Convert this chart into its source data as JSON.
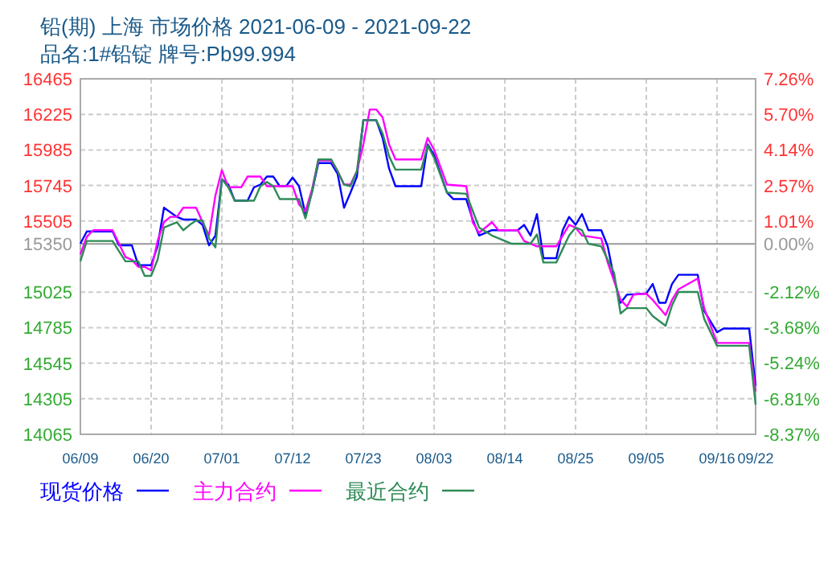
{
  "chart_data": {
    "type": "line",
    "title": "铅(期) 上海 市场价格 2021-06-09 - 2021-09-22",
    "subtitle": "品名:1#铅锭 牌号:Pb99.994",
    "xlim": [
      "2021-06-09",
      "2021-09-22"
    ],
    "xticks": [
      {
        "value": "2021-06-09",
        "label": "06/09"
      },
      {
        "value": "2021-06-20",
        "label": "06/20"
      },
      {
        "value": "2021-07-01",
        "label": "07/01"
      },
      {
        "value": "2021-07-12",
        "label": "07/12"
      },
      {
        "value": "2021-07-23",
        "label": "07/23"
      },
      {
        "value": "2021-08-03",
        "label": "08/03"
      },
      {
        "value": "2021-08-14",
        "label": "08/14"
      },
      {
        "value": "2021-08-25",
        "label": "08/25"
      },
      {
        "value": "2021-09-05",
        "label": "09/05"
      },
      {
        "value": "2021-09-16",
        "label": "09/16"
      },
      {
        "value": "2021-09-22",
        "label": "09/22"
      }
    ],
    "ylim": [
      14065,
      16465
    ],
    "yticks": [
      14065,
      14305,
      14545,
      14785,
      15025,
      15350,
      15505,
      15745,
      15985,
      16225,
      16465
    ],
    "y2lim": [
      -8.37,
      7.26
    ],
    "y2ticks": [
      {
        "value": -8.37,
        "label": "-8.37%"
      },
      {
        "value": -6.81,
        "label": "-6.81%"
      },
      {
        "value": -5.24,
        "label": "-5.24%"
      },
      {
        "value": -3.68,
        "label": "-3.68%"
      },
      {
        "value": -2.12,
        "label": "-2.12%"
      },
      {
        "value": 0,
        "label": "0.00%"
      },
      {
        "value": 1.01,
        "label": "1.01%"
      },
      {
        "value": 2.57,
        "label": "2.57%"
      },
      {
        "value": 4.14,
        "label": "4.14%"
      },
      {
        "value": 5.7,
        "label": "5.70%"
      },
      {
        "value": 7.26,
        "label": "7.26%"
      }
    ],
    "ref_lines": [
      {
        "axis": "y",
        "value": 15350,
        "color": "#999999"
      }
    ],
    "grid": true,
    "legend": "bottom left",
    "line_style": "solid",
    "series": [
      {
        "name": "现货价格",
        "color": "#0000ff",
        "x": [
          "2021-06-09",
          "2021-06-10",
          "2021-06-14",
          "2021-06-15",
          "2021-06-17",
          "2021-06-18",
          "2021-06-20",
          "2021-06-21",
          "2021-06-22",
          "2021-06-24",
          "2021-06-25",
          "2021-06-27",
          "2021-06-28",
          "2021-06-29",
          "2021-06-30",
          "2021-07-01",
          "2021-07-02",
          "2021-07-03",
          "2021-07-05",
          "2021-07-06",
          "2021-07-07",
          "2021-07-08",
          "2021-07-09",
          "2021-07-10",
          "2021-07-11",
          "2021-07-12",
          "2021-07-13",
          "2021-07-14",
          "2021-07-15",
          "2021-07-16",
          "2021-07-18",
          "2021-07-19",
          "2021-07-20",
          "2021-07-21",
          "2021-07-22",
          "2021-07-23",
          "2021-07-25",
          "2021-07-26",
          "2021-07-27",
          "2021-07-28",
          "2021-08-01",
          "2021-08-02",
          "2021-08-03",
          "2021-08-05",
          "2021-08-06",
          "2021-08-08",
          "2021-08-09",
          "2021-08-10",
          "2021-08-12",
          "2021-08-16",
          "2021-08-17",
          "2021-08-18",
          "2021-08-19",
          "2021-08-20",
          "2021-08-22",
          "2021-08-23",
          "2021-08-24",
          "2021-08-25",
          "2021-08-26",
          "2021-08-27",
          "2021-08-29",
          "2021-08-30",
          "2021-08-31",
          "2021-09-01",
          "2021-09-02",
          "2021-09-05",
          "2021-09-06",
          "2021-09-07",
          "2021-09-08",
          "2021-09-09",
          "2021-09-10",
          "2021-09-13",
          "2021-09-14",
          "2021-09-16",
          "2021-09-17",
          "2021-09-21",
          "2021-09-22"
        ],
        "values": [
          15352,
          15435,
          15435,
          15341,
          15341,
          15207,
          15207,
          15334,
          15595,
          15533,
          15515,
          15515,
          15479,
          15341,
          15407,
          15787,
          15751,
          15642,
          15642,
          15733,
          15751,
          15805,
          15805,
          15740,
          15740,
          15798,
          15740,
          15552,
          15697,
          15896,
          15896,
          15823,
          15595,
          15697,
          15805,
          16186,
          16186,
          16066,
          15860,
          15740,
          15740,
          16023,
          15950,
          15697,
          15653,
          15653,
          15515,
          15407,
          15443,
          15443,
          15479,
          15407,
          15552,
          15254,
          15254,
          15443,
          15533,
          15479,
          15552,
          15443,
          15443,
          15334,
          15117,
          14953,
          15008,
          15015,
          15080,
          14953,
          14953,
          15080,
          15142,
          15142,
          14899,
          14754,
          14779,
          14779,
          14391
        ]
      },
      {
        "name": "主力合约",
        "color": "#ff00ff",
        "x": [
          "2021-06-09",
          "2021-06-10",
          "2021-06-11",
          "2021-06-14",
          "2021-06-16",
          "2021-06-17",
          "2021-06-18",
          "2021-06-19",
          "2021-06-20",
          "2021-06-21",
          "2021-06-22",
          "2021-06-23",
          "2021-06-24",
          "2021-06-25",
          "2021-06-27",
          "2021-06-28",
          "2021-06-29",
          "2021-06-30",
          "2021-07-01",
          "2021-07-02",
          "2021-07-04",
          "2021-07-05",
          "2021-07-07",
          "2021-07-08",
          "2021-07-12",
          "2021-07-13",
          "2021-07-14",
          "2021-07-15",
          "2021-07-16",
          "2021-07-18",
          "2021-07-19",
          "2021-07-20",
          "2021-07-21",
          "2021-07-22",
          "2021-07-23",
          "2021-07-24",
          "2021-07-25",
          "2021-07-26",
          "2021-07-27",
          "2021-07-28",
          "2021-08-01",
          "2021-08-02",
          "2021-08-03",
          "2021-08-05",
          "2021-08-08",
          "2021-08-09",
          "2021-08-10",
          "2021-08-12",
          "2021-08-13",
          "2021-08-16",
          "2021-08-17",
          "2021-08-19",
          "2021-08-22",
          "2021-08-24",
          "2021-08-25",
          "2021-08-26",
          "2021-08-29",
          "2021-08-30",
          "2021-09-01",
          "2021-09-02",
          "2021-09-03",
          "2021-09-05",
          "2021-09-06",
          "2021-09-08",
          "2021-09-09",
          "2021-09-10",
          "2021-09-13",
          "2021-09-14",
          "2021-09-16",
          "2021-09-21",
          "2021-09-22"
        ],
        "values": [
          15280,
          15399,
          15443,
          15443,
          15262,
          15244,
          15196,
          15196,
          15171,
          15370,
          15497,
          15533,
          15533,
          15595,
          15595,
          15497,
          15407,
          15678,
          15849,
          15733,
          15733,
          15805,
          15805,
          15740,
          15740,
          15617,
          15570,
          15715,
          15914,
          15914,
          15842,
          15751,
          15751,
          15842,
          16023,
          16258,
          16258,
          16204,
          16023,
          15921,
          15921,
          16066,
          15986,
          15751,
          15740,
          15497,
          15425,
          15497,
          15443,
          15443,
          15370,
          15334,
          15334,
          15479,
          15461,
          15407,
          15388,
          15225,
          14972,
          14928,
          15008,
          15015,
          14972,
          14870,
          14972,
          15044,
          15117,
          14917,
          14682,
          14682,
          14355
        ]
      },
      {
        "name": "最近合约",
        "color": "#2e8b57",
        "x": [
          "2021-06-09",
          "2021-06-10",
          "2021-06-14",
          "2021-06-16",
          "2021-06-18",
          "2021-06-19",
          "2021-06-20",
          "2021-06-21",
          "2021-06-22",
          "2021-06-24",
          "2021-06-25",
          "2021-06-26",
          "2021-06-27",
          "2021-06-28",
          "2021-06-29",
          "2021-06-30",
          "2021-07-01",
          "2021-07-02",
          "2021-07-03",
          "2021-07-06",
          "2021-07-07",
          "2021-07-08",
          "2021-07-09",
          "2021-07-10",
          "2021-07-13",
          "2021-07-14",
          "2021-07-15",
          "2021-07-16",
          "2021-07-18",
          "2021-07-19",
          "2021-07-20",
          "2021-07-21",
          "2021-07-22",
          "2021-07-23",
          "2021-07-25",
          "2021-07-26",
          "2021-07-27",
          "2021-07-28",
          "2021-08-01",
          "2021-08-02",
          "2021-08-03",
          "2021-08-05",
          "2021-08-08",
          "2021-08-10",
          "2021-08-12",
          "2021-08-15",
          "2021-08-18",
          "2021-08-19",
          "2021-08-20",
          "2021-08-22",
          "2021-08-24",
          "2021-08-25",
          "2021-08-26",
          "2021-08-27",
          "2021-08-29",
          "2021-08-31",
          "2021-09-01",
          "2021-09-02",
          "2021-09-05",
          "2021-09-06",
          "2021-09-08",
          "2021-09-09",
          "2021-09-10",
          "2021-09-13",
          "2021-09-14",
          "2021-09-16",
          "2021-09-21",
          "2021-09-22"
        ],
        "values": [
          15233,
          15370,
          15370,
          15233,
          15233,
          15135,
          15135,
          15243,
          15461,
          15497,
          15443,
          15479,
          15508,
          15508,
          15388,
          15327,
          15787,
          15733,
          15642,
          15642,
          15740,
          15769,
          15740,
          15653,
          15653,
          15523,
          15697,
          15921,
          15921,
          15842,
          15751,
          15740,
          15842,
          16186,
          16186,
          16095,
          15943,
          15852,
          15852,
          16016,
          15932,
          15697,
          15689,
          15461,
          15407,
          15352,
          15352,
          15414,
          15225,
          15225,
          15407,
          15461,
          15443,
          15352,
          15334,
          15153,
          14881,
          14917,
          14917,
          14863,
          14798,
          14935,
          15026,
          15026,
          14845,
          14663,
          14663,
          14265
        ]
      }
    ]
  }
}
